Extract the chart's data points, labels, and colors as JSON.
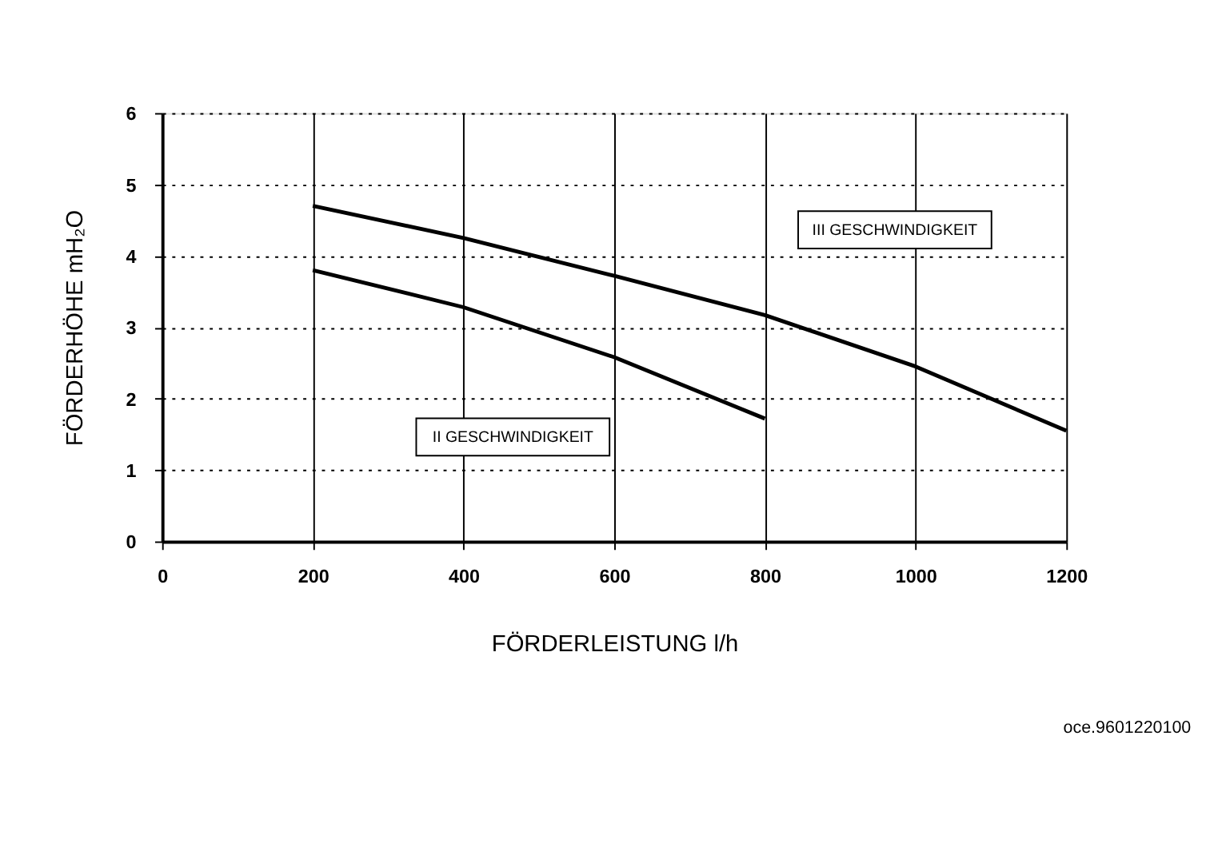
{
  "chart_data": {
    "type": "line",
    "xlabel": "FÖRDERLEISTUNG l/h",
    "ylabel": "FÖRDERHÖHE mH₂O",
    "x": [
      200,
      400,
      600,
      800,
      1000,
      1200
    ],
    "series": [
      {
        "color": "#000000",
        "values": [
          4.7,
          4.25,
          3.72,
          3.17,
          2.45,
          1.55
        ]
      },
      {
        "color": "#000000",
        "values": [
          3.8,
          3.28,
          2.58,
          1.72,
          null,
          null
        ]
      }
    ],
    "xlim": [
      0,
      1200
    ],
    "xticks": [
      0,
      200,
      400,
      600,
      800,
      1000,
      1200
    ],
    "ylim": [
      0,
      6
    ],
    "yticks": [
      0,
      1,
      2,
      3,
      4,
      5,
      6
    ],
    "grid": true,
    "marker": "none",
    "line_style": "solid",
    "annotations": [
      "III GESCHWINDIGKEIT",
      "II GESCHWINDIGKEIT",
      "oce.9601220100"
    ]
  }
}
